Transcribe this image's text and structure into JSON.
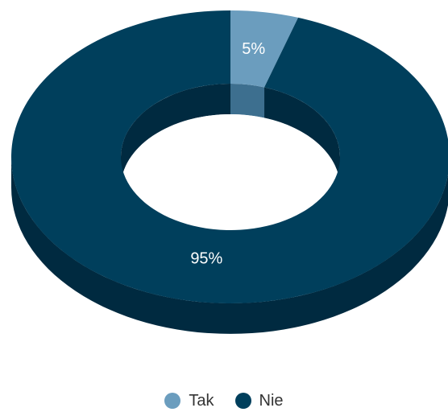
{
  "chart_data": {
    "type": "pie",
    "style": "3d-donut",
    "title": "",
    "categories": [
      "Tak",
      "Nie"
    ],
    "values": [
      5,
      95
    ],
    "labels": [
      "5%",
      "95%"
    ],
    "colors": [
      "#6b9dbe",
      "#003f5c"
    ],
    "side_colors": [
      "#3d6f8f",
      "#002a40"
    ],
    "legend": {
      "position": "bottom-center",
      "items": [
        {
          "label": "Tak",
          "color": "#6b9dbe"
        },
        {
          "label": "Nie",
          "color": "#003f5c"
        }
      ]
    }
  }
}
